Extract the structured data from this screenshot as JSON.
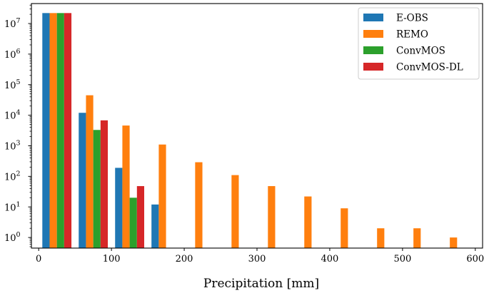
{
  "chart_data": {
    "type": "bar",
    "xlabel": "Precipitation [mm]",
    "ylabel": "",
    "x_scale": "linear",
    "y_scale": "log",
    "xlim": [
      -10,
      610
    ],
    "ylim": [
      0.45,
      45000000
    ],
    "x_ticks": [
      0,
      100,
      200,
      300,
      400,
      500,
      600
    ],
    "x_tick_labels": [
      "0",
      "100",
      "200",
      "300",
      "400",
      "500",
      "600"
    ],
    "y_ticks": [
      1,
      10,
      100,
      1000,
      10000,
      100000,
      1000000,
      10000000
    ],
    "y_tick_labels": [
      {
        "base": "10",
        "exp": "0"
      },
      {
        "base": "10",
        "exp": "1"
      },
      {
        "base": "10",
        "exp": "2"
      },
      {
        "base": "10",
        "exp": "3"
      },
      {
        "base": "10",
        "exp": "4"
      },
      {
        "base": "10",
        "exp": "5"
      },
      {
        "base": "10",
        "exp": "6"
      },
      {
        "base": "10",
        "exp": "7"
      }
    ],
    "bin_edges": [
      0,
      50,
      100,
      150,
      200,
      250,
      300,
      350,
      400,
      450,
      500,
      550,
      600
    ],
    "grid": false,
    "legend_position": "top-right",
    "series": [
      {
        "name": "E-OBS",
        "color": "#1f77b4",
        "values": [
          22000000,
          12000,
          190,
          12,
          0,
          0,
          0,
          0,
          0,
          0,
          0,
          0
        ]
      },
      {
        "name": "REMO",
        "color": "#ff7f0e",
        "values": [
          22000000,
          45000,
          4600,
          1100,
          290,
          110,
          48,
          22,
          9,
          2,
          2,
          1
        ]
      },
      {
        "name": "ConvMOS",
        "color": "#2ca02c",
        "values": [
          22000000,
          3300,
          20,
          0,
          0,
          0,
          0,
          0,
          0,
          0,
          0,
          0
        ]
      },
      {
        "name": "ConvMOS-DL",
        "color": "#d62728",
        "values": [
          22000000,
          6800,
          48,
          0,
          0,
          0,
          0,
          0,
          0,
          0,
          0,
          0
        ]
      }
    ]
  }
}
